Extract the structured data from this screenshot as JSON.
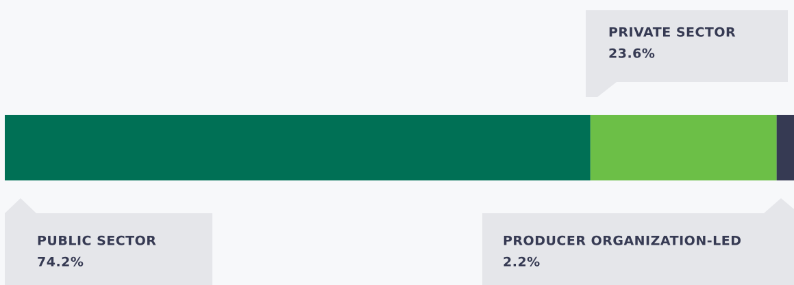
{
  "chart_data": {
    "type": "bar",
    "stacked": true,
    "orientation": "horizontal",
    "xlim": [
      0,
      100
    ],
    "series": [
      {
        "name": "PUBLIC SECTOR",
        "color": "#007055",
        "values": [
          74.2
        ],
        "value_labels": [
          "74.2%"
        ]
      },
      {
        "name": "PRIVATE SECTOR",
        "color": "#6cbf47",
        "values": [
          23.6
        ],
        "value_labels": [
          "23.6%"
        ]
      },
      {
        "name": "PRODUCER ORGANIZATION-LED",
        "color": "#363a53",
        "values": [
          2.2
        ],
        "value_labels": [
          "2.2%"
        ]
      }
    ]
  }
}
